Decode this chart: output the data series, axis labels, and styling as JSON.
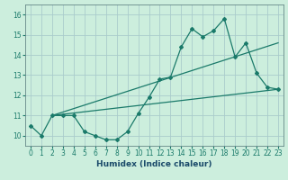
{
  "title": "",
  "xlabel": "Humidex (Indice chaleur)",
  "ylabel": "",
  "bg_color": "#cceedd",
  "grid_color": "#aacccc",
  "line_color": "#1a7a6a",
  "x_data": [
    0,
    1,
    2,
    3,
    4,
    5,
    6,
    7,
    8,
    9,
    10,
    11,
    12,
    13,
    14,
    15,
    16,
    17,
    18,
    19,
    20,
    21,
    22,
    23
  ],
  "y_main": [
    10.5,
    10.0,
    11.0,
    11.0,
    11.0,
    10.2,
    10.0,
    9.8,
    9.8,
    10.2,
    11.1,
    11.9,
    12.8,
    12.9,
    14.4,
    15.3,
    14.9,
    15.2,
    15.8,
    13.9,
    14.6,
    13.1,
    12.4,
    12.3
  ],
  "trend1_x": [
    2,
    23
  ],
  "trend1_y": [
    11.0,
    14.6
  ],
  "trend2_x": [
    2,
    23
  ],
  "trend2_y": [
    11.0,
    12.3
  ],
  "ylim": [
    9.5,
    16.5
  ],
  "xlim": [
    -0.5,
    23.5
  ],
  "yticks": [
    10,
    11,
    12,
    13,
    14,
    15,
    16
  ],
  "xticks": [
    0,
    1,
    2,
    3,
    4,
    5,
    6,
    7,
    8,
    9,
    10,
    11,
    12,
    13,
    14,
    15,
    16,
    17,
    18,
    19,
    20,
    21,
    22,
    23
  ],
  "tick_fontsize": 5.5,
  "xlabel_fontsize": 6.5,
  "xlabel_color": "#1a4a6a",
  "spine_color": "#668888"
}
